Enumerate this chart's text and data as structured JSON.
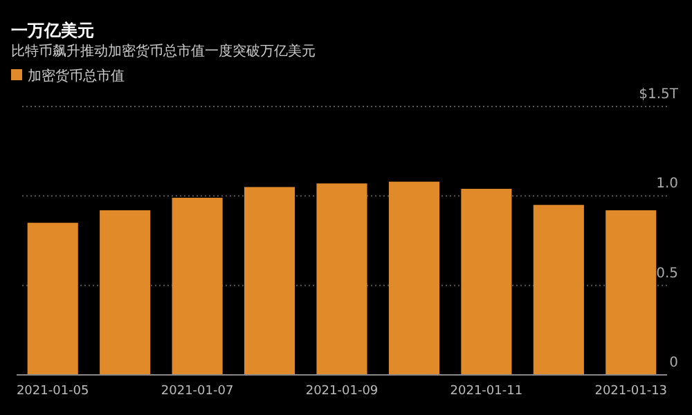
{
  "chart_data": {
    "type": "bar",
    "title": "一万亿美元",
    "subtitle": "比特币飙升推动加密货币总市值一度突破万亿美元",
    "x": [
      "2021-01-05",
      "2021-01-06",
      "2021-01-07",
      "2021-01-08",
      "2021-01-09",
      "2021-01-10",
      "2021-01-11",
      "2021-01-12",
      "2021-01-13"
    ],
    "series": [
      {
        "name": "加密货币总市值",
        "color": "#e08a2a",
        "values": [
          0.85,
          0.92,
          0.99,
          1.05,
          1.07,
          1.08,
          1.04,
          0.95,
          0.92
        ]
      }
    ],
    "xlim": [
      "2021-01-04T12:00",
      "2021-01-13T12:00"
    ],
    "xticks": [
      "2021-01-05",
      "2021-01-07",
      "2021-01-09",
      "2021-01-11",
      "2021-01-13"
    ],
    "ylim": [
      0,
      1.5
    ],
    "yticks": [
      0,
      0.5,
      {
        "value": 1.0,
        "label": "1.0"
      },
      {
        "value": 1.5,
        "label": "$1.5T"
      }
    ],
    "grid": "y",
    "legend": "top left"
  }
}
